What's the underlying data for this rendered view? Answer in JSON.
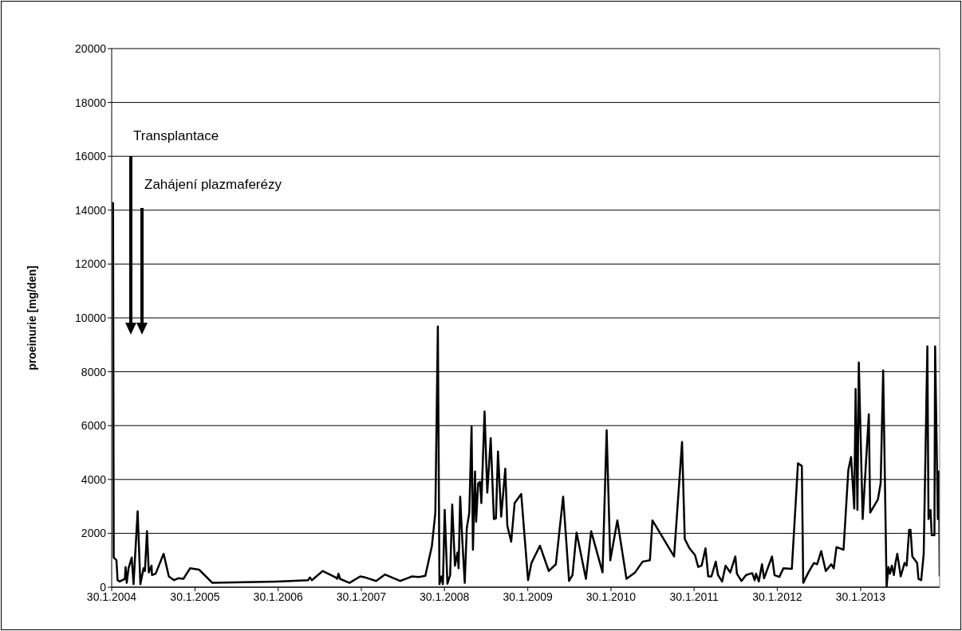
{
  "chart_data": {
    "type": "line",
    "ylabel": "proeinurie [mg/den]",
    "color": "#000000",
    "grid": "y",
    "marker": "none",
    "line_style": "solid",
    "ylim": [
      0,
      20000
    ],
    "yticks": [
      0,
      2000,
      4000,
      6000,
      8000,
      10000,
      12000,
      14000,
      16000,
      18000,
      20000
    ],
    "xlim": [
      "2004-01-30",
      "2014-01-12"
    ],
    "xticks": [
      {
        "value": "2004-01-30",
        "label": "30.1.2004"
      },
      {
        "value": "2005-01-30",
        "label": "30.1.2005"
      },
      {
        "value": "2006-01-30",
        "label": "30.1.2006"
      },
      {
        "value": "2007-01-30",
        "label": "30.1.2007"
      },
      {
        "value": "2008-01-30",
        "label": "30.1.2008"
      },
      {
        "value": "2009-01-30",
        "label": "30.1.2009"
      },
      {
        "value": "2010-01-30",
        "label": "30.1.2010"
      },
      {
        "value": "2011-01-30",
        "label": "30.1.2011"
      },
      {
        "value": "2012-01-30",
        "label": "30.1.2012"
      },
      {
        "value": "2013-01-30",
        "label": "30.1.2013"
      }
    ],
    "annotations": [
      "Transplantace",
      "Zahájení plazmaferézy"
    ],
    "x": [
      "2004-02-05",
      "2004-02-08",
      "2004-02-20",
      "2004-02-25",
      "2004-03-05",
      "2004-03-28",
      "2004-03-31",
      "2004-04-05",
      "2004-04-13",
      "2004-04-27",
      "2004-05-05",
      "2004-05-23",
      "2004-06-04",
      "2004-06-18",
      "2004-06-24",
      "2004-07-03",
      "2004-07-11",
      "2004-07-23",
      "2004-07-25",
      "2004-08-10",
      "2004-09-14",
      "2004-10-07",
      "2004-10-30",
      "2004-11-17",
      "2004-12-10",
      "2005-01-08",
      "2005-02-17",
      "2005-04-16",
      "2006-01-22",
      "2006-06-10",
      "2006-06-18",
      "2006-06-27",
      "2006-08-13",
      "2006-10-10",
      "2006-10-16",
      "2006-10-22",
      "2006-10-28",
      "2006-12-09",
      "2007-01-25",
      "2007-02-17",
      "2007-04-05",
      "2007-05-14",
      "2007-07-19",
      "2007-09-10",
      "2007-10-09",
      "2007-11-07",
      "2007-12-06",
      "2007-12-21",
      "2008-01-01",
      "2008-01-08",
      "2008-01-17",
      "2008-01-23",
      "2008-01-31",
      "2008-02-12",
      "2008-02-24",
      "2008-03-04",
      "2008-03-16",
      "2008-03-27",
      "2008-04-01",
      "2008-04-08",
      "2008-04-17",
      "2008-04-28",
      "2008-05-07",
      "2008-05-18",
      "2008-05-28",
      "2008-06-03",
      "2008-06-12",
      "2008-06-17",
      "2008-06-26",
      "2008-07-04",
      "2008-07-10",
      "2008-07-24",
      "2008-08-05",
      "2008-08-20",
      "2008-09-03",
      "2008-09-12",
      "2008-09-21",
      "2008-10-05",
      "2008-10-23",
      "2008-11-01",
      "2008-11-18",
      "2008-12-03",
      "2009-01-01",
      "2009-01-31",
      "2009-02-15",
      "2009-03-24",
      "2009-05-02",
      "2009-06-02",
      "2009-07-04",
      "2009-07-30",
      "2009-08-14",
      "2009-09-01",
      "2009-10-12",
      "2009-11-04",
      "2009-12-24",
      "2010-01-11",
      "2010-01-27",
      "2010-02-27",
      "2010-04-08",
      "2010-05-16",
      "2010-06-18",
      "2010-07-20",
      "2010-07-31",
      "2010-11-03",
      "2010-12-08",
      "2010-12-20",
      "2011-01-10",
      "2011-02-03",
      "2011-02-17",
      "2011-03-04",
      "2011-03-21",
      "2011-04-02",
      "2011-04-16",
      "2011-05-05",
      "2011-05-15",
      "2011-06-02",
      "2011-06-17",
      "2011-07-08",
      "2011-07-30",
      "2011-08-06",
      "2011-08-26",
      "2011-09-15",
      "2011-10-12",
      "2011-10-23",
      "2011-10-29",
      "2011-11-10",
      "2011-11-24",
      "2011-12-03",
      "2012-01-07",
      "2012-01-18",
      "2012-02-08",
      "2012-02-26",
      "2012-04-03",
      "2012-04-30",
      "2012-05-17",
      "2012-05-23",
      "2012-06-15",
      "2012-07-09",
      "2012-07-23",
      "2012-08-10",
      "2012-08-30",
      "2012-09-23",
      "2012-10-04",
      "2012-10-16",
      "2012-11-16",
      "2012-12-07",
      "2012-12-19",
      "2013-01-02",
      "2013-01-08",
      "2013-01-16",
      "2013-01-22",
      "2013-02-08",
      "2013-03-07",
      "2013-03-13",
      "2013-04-16",
      "2013-04-28",
      "2013-05-09",
      "2013-05-24",
      "2013-06-01",
      "2013-06-08",
      "2013-06-16",
      "2013-06-25",
      "2013-07-02",
      "2013-07-10",
      "2013-07-25",
      "2013-08-11",
      "2013-08-20",
      "2013-08-31",
      "2013-09-06",
      "2013-09-14",
      "2013-10-05",
      "2013-10-11",
      "2013-10-23",
      "2013-11-03",
      "2013-11-19",
      "2013-11-24",
      "2013-12-03",
      "2013-12-08",
      "2013-12-20",
      "2013-12-23",
      "2014-01-04",
      "2014-01-09",
      "2014-01-12"
    ],
    "values": [
      14300,
      1100,
      1000,
      260,
      210,
      310,
      750,
      160,
      700,
      1100,
      110,
      2820,
      110,
      700,
      600,
      2080,
      550,
      800,
      450,
      500,
      1240,
      400,
      260,
      330,
      310,
      700,
      650,
      160,
      210,
      260,
      360,
      260,
      600,
      360,
      310,
      500,
      310,
      160,
      400,
      360,
      230,
      470,
      230,
      400,
      380,
      420,
      1540,
      2770,
      9680,
      110,
      400,
      110,
      2870,
      130,
      450,
      3070,
      800,
      1290,
      700,
      3360,
      1790,
      160,
      2180,
      2770,
      5980,
      1390,
      4300,
      2430,
      3860,
      3910,
      3120,
      6520,
      3510,
      5530,
      2530,
      2560,
      5040,
      2620,
      4400,
      2280,
      1690,
      3120,
      3460,
      260,
      900,
      1540,
      600,
      850,
      3360,
      230,
      450,
      2030,
      310,
      2080,
      550,
      5830,
      1000,
      2480,
      310,
      550,
      950,
      1000,
      2480,
      1140,
      5390,
      1790,
      1440,
      1190,
      750,
      800,
      1440,
      400,
      400,
      950,
      450,
      210,
      800,
      550,
      1140,
      500,
      230,
      450,
      520,
      260,
      500,
      210,
      850,
      330,
      1140,
      450,
      380,
      700,
      680,
      4600,
      4500,
      160,
      550,
      900,
      850,
      1340,
      600,
      850,
      700,
      1490,
      1390,
      4350,
      4840,
      2920,
      7360,
      2870,
      8340,
      2530,
      6420,
      2770,
      3260,
      3860,
      8050,
      10,
      750,
      500,
      800,
      450,
      900,
      1240,
      400,
      900,
      800,
      2130,
      2130,
      1140,
      900,
      310,
      260,
      1240,
      8940,
      2530,
      2870,
      1930,
      1930,
      8940,
      2530,
      4300,
      400
    ]
  }
}
